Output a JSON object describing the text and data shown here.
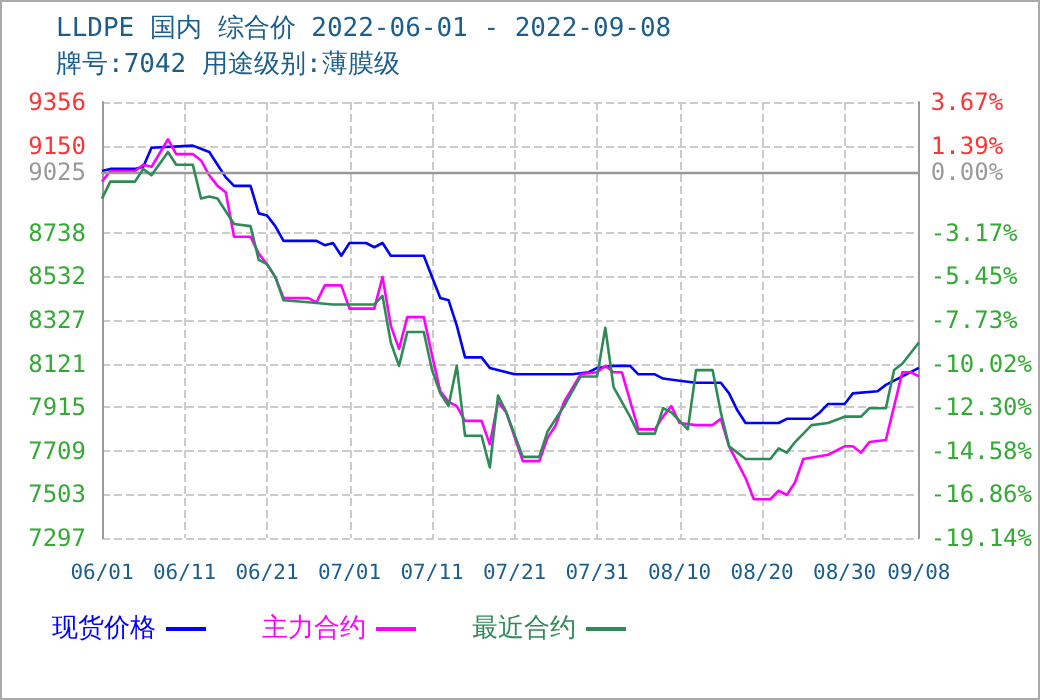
{
  "chart_data": {
    "type": "line",
    "title": "LLDPE 国内 综合价 2022-06-01 - 2022-09-08",
    "subtitle": "牌号:7042 用途级别:薄膜级",
    "xlim": [
      "2022-06-01",
      "2022-09-08"
    ],
    "xticks": [
      {
        "value": "2022-06-01",
        "label": "06/01"
      },
      {
        "value": "2022-06-11",
        "label": "06/11"
      },
      {
        "value": "2022-06-21",
        "label": "06/21"
      },
      {
        "value": "2022-07-01",
        "label": "07/01"
      },
      {
        "value": "2022-07-11",
        "label": "07/11"
      },
      {
        "value": "2022-07-21",
        "label": "07/21"
      },
      {
        "value": "2022-07-31",
        "label": "07/31"
      },
      {
        "value": "2022-08-10",
        "label": "08/10"
      },
      {
        "value": "2022-08-20",
        "label": "08/20"
      },
      {
        "value": "2022-08-30",
        "label": "08/30"
      },
      {
        "value": "2022-09-08",
        "label": "09/08"
      }
    ],
    "ylim": [
      7297,
      9356
    ],
    "yticks": [
      7297,
      7503,
      7709,
      7915,
      8121,
      8327,
      8532,
      8738,
      9025,
      9150,
      9356
    ],
    "y2lim": [
      -19.14,
      3.67
    ],
    "y2ticks": [
      {
        "value": -19.14,
        "label": "-19.14%"
      },
      {
        "value": -16.86,
        "label": "-16.86%"
      },
      {
        "value": -14.58,
        "label": "-14.58%"
      },
      {
        "value": -12.3,
        "label": "-12.30%"
      },
      {
        "value": -10.02,
        "label": "-10.02%"
      },
      {
        "value": -7.73,
        "label": "-7.73%"
      },
      {
        "value": -5.45,
        "label": "-5.45%"
      },
      {
        "value": -3.17,
        "label": "-3.17%"
      },
      {
        "value": 0,
        "label": "0.00%"
      },
      {
        "value": 1.39,
        "label": "1.39%"
      },
      {
        "value": 3.67,
        "label": "3.67%"
      }
    ],
    "ref_lines": [
      {
        "axis": "y",
        "value": 9025,
        "color": "#999999"
      }
    ],
    "grid": true,
    "legend": "bottom",
    "marker": "none",
    "line_style": "solid",
    "series": [
      {
        "name": "现货价格",
        "color": "#0000ff",
        "x": [
          "2022-06-01",
          "2022-06-02",
          "2022-06-05",
          "2022-06-06",
          "2022-06-07",
          "2022-06-12",
          "2022-06-14",
          "2022-06-15",
          "2022-06-16",
          "2022-06-17",
          "2022-06-19",
          "2022-06-20",
          "2022-06-21",
          "2022-06-22",
          "2022-06-23",
          "2022-06-27",
          "2022-06-28",
          "2022-06-29",
          "2022-06-30",
          "2022-07-01",
          "2022-07-03",
          "2022-07-04",
          "2022-07-05",
          "2022-07-06",
          "2022-07-10",
          "2022-07-11",
          "2022-07-12",
          "2022-07-13",
          "2022-07-14",
          "2022-07-15",
          "2022-07-17",
          "2022-07-18",
          "2022-07-21",
          "2022-07-28",
          "2022-07-30",
          "2022-07-31",
          "2022-08-02",
          "2022-08-04",
          "2022-08-05",
          "2022-08-07",
          "2022-08-08",
          "2022-08-10",
          "2022-08-12",
          "2022-08-15",
          "2022-08-16",
          "2022-08-17",
          "2022-08-18",
          "2022-08-22",
          "2022-08-23",
          "2022-08-26",
          "2022-08-27",
          "2022-08-28",
          "2022-08-30",
          "2022-08-31",
          "2022-09-03",
          "2022-09-04",
          "2022-09-06",
          "2022-09-08"
        ],
        "values": [
          9030,
          9040,
          9040,
          9050,
          9140,
          9150,
          9120,
          9060,
          9000,
          8960,
          8960,
          8830,
          8820,
          8770,
          8700,
          8700,
          8680,
          8690,
          8630,
          8690,
          8690,
          8670,
          8690,
          8630,
          8630,
          8530,
          8430,
          8420,
          8300,
          8150,
          8150,
          8100,
          8070,
          8070,
          8080,
          8100,
          8110,
          8110,
          8070,
          8070,
          8050,
          8040,
          8030,
          8030,
          7980,
          7900,
          7840,
          7840,
          7860,
          7860,
          7890,
          7930,
          7930,
          7980,
          7990,
          8020,
          8060,
          8100
        ]
      },
      {
        "name": "主力合约",
        "color": "#ff00ff",
        "x": [
          "2022-06-01",
          "2022-06-02",
          "2022-06-05",
          "2022-06-06",
          "2022-06-07",
          "2022-06-09",
          "2022-06-10",
          "2022-06-12",
          "2022-06-13",
          "2022-06-14",
          "2022-06-15",
          "2022-06-16",
          "2022-06-17",
          "2022-06-19",
          "2022-06-20",
          "2022-06-21",
          "2022-06-22",
          "2022-06-23",
          "2022-06-26",
          "2022-06-27",
          "2022-06-28",
          "2022-06-30",
          "2022-07-01",
          "2022-07-04",
          "2022-07-05",
          "2022-07-06",
          "2022-07-07",
          "2022-07-08",
          "2022-07-10",
          "2022-07-11",
          "2022-07-12",
          "2022-07-13",
          "2022-07-14",
          "2022-07-15",
          "2022-07-17",
          "2022-07-18",
          "2022-07-19",
          "2022-07-20",
          "2022-07-22",
          "2022-07-24",
          "2022-07-25",
          "2022-07-26",
          "2022-07-27",
          "2022-07-29",
          "2022-07-31",
          "2022-08-01",
          "2022-08-02",
          "2022-08-03",
          "2022-08-05",
          "2022-08-07",
          "2022-08-08",
          "2022-08-09",
          "2022-08-10",
          "2022-08-12",
          "2022-08-14",
          "2022-08-15",
          "2022-08-16",
          "2022-08-18",
          "2022-08-19",
          "2022-08-21",
          "2022-08-22",
          "2022-08-23",
          "2022-08-24",
          "2022-08-25",
          "2022-08-28",
          "2022-08-30",
          "2022-08-31",
          "2022-09-01",
          "2022-09-02",
          "2022-09-04",
          "2022-09-05",
          "2022-09-06",
          "2022-09-07",
          "2022-09-08"
        ],
        "values": [
          8980,
          9030,
          9030,
          9060,
          9050,
          9180,
          9110,
          9110,
          9080,
          9010,
          8960,
          8930,
          8720,
          8720,
          8640,
          8590,
          8530,
          8430,
          8430,
          8410,
          8490,
          8490,
          8380,
          8380,
          8530,
          8300,
          8190,
          8340,
          8340,
          8160,
          7990,
          7940,
          7920,
          7850,
          7850,
          7740,
          7940,
          7890,
          7660,
          7660,
          7770,
          7830,
          7940,
          8070,
          8080,
          8110,
          8080,
          8080,
          7810,
          7810,
          7870,
          7920,
          7840,
          7830,
          7830,
          7860,
          7730,
          7580,
          7480,
          7480,
          7520,
          7500,
          7560,
          7670,
          7690,
          7730,
          7730,
          7700,
          7750,
          7760,
          7920,
          8080,
          8080,
          8060
        ]
      },
      {
        "name": "最近合约",
        "color": "#2e8b57",
        "x": [
          "2022-06-01",
          "2022-06-02",
          "2022-06-05",
          "2022-06-06",
          "2022-06-07",
          "2022-06-09",
          "2022-06-10",
          "2022-06-12",
          "2022-06-13",
          "2022-06-14",
          "2022-06-15",
          "2022-06-17",
          "2022-06-19",
          "2022-06-20",
          "2022-06-21",
          "2022-06-22",
          "2022-06-23",
          "2022-06-26",
          "2022-06-29",
          "2022-07-04",
          "2022-07-05",
          "2022-07-06",
          "2022-07-07",
          "2022-07-08",
          "2022-07-10",
          "2022-07-11",
          "2022-07-12",
          "2022-07-13",
          "2022-07-14",
          "2022-07-15",
          "2022-07-17",
          "2022-07-18",
          "2022-07-19",
          "2022-07-20",
          "2022-07-22",
          "2022-07-24",
          "2022-07-25",
          "2022-07-27",
          "2022-07-29",
          "2022-07-31",
          "2022-08-01",
          "2022-08-02",
          "2022-08-04",
          "2022-08-05",
          "2022-08-07",
          "2022-08-08",
          "2022-08-09",
          "2022-08-11",
          "2022-08-12",
          "2022-08-14",
          "2022-08-15",
          "2022-08-16",
          "2022-08-18",
          "2022-08-21",
          "2022-08-22",
          "2022-08-23",
          "2022-08-24",
          "2022-08-26",
          "2022-08-28",
          "2022-08-30",
          "2022-09-01",
          "2022-09-02",
          "2022-09-04",
          "2022-09-05",
          "2022-09-06",
          "2022-09-08"
        ],
        "values": [
          8900,
          8980,
          8980,
          9040,
          9010,
          9120,
          9060,
          9060,
          8900,
          8910,
          8900,
          8780,
          8770,
          8610,
          8590,
          8530,
          8420,
          8410,
          8400,
          8400,
          8440,
          8220,
          8110,
          8270,
          8270,
          8090,
          7980,
          7920,
          8110,
          7780,
          7780,
          7630,
          7970,
          7890,
          7680,
          7680,
          7800,
          7920,
          8060,
          8060,
          8290,
          8010,
          7870,
          7790,
          7790,
          7910,
          7890,
          7810,
          8090,
          8090,
          7890,
          7730,
          7670,
          7670,
          7720,
          7700,
          7750,
          7830,
          7840,
          7870,
          7870,
          7910,
          7910,
          8090,
          8120,
          8220
        ]
      }
    ]
  }
}
